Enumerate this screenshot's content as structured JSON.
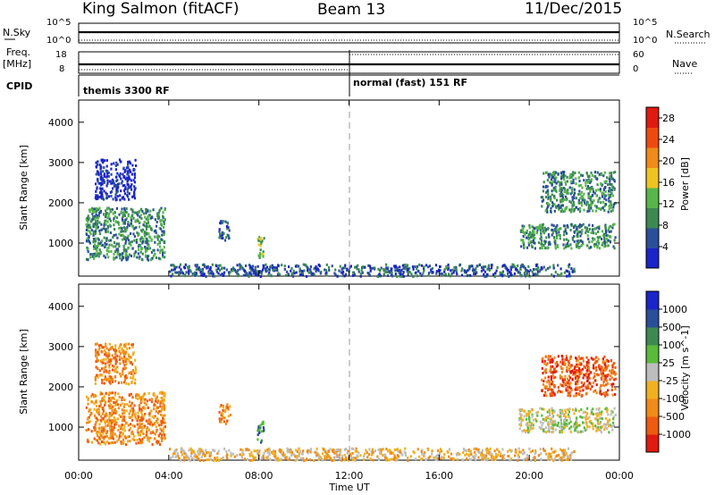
{
  "header": {
    "station": "King Salmon (fitACF)",
    "beam": "Beam 13",
    "date": "11/Dec/2015"
  },
  "param_labels": {
    "nsky": "N.Sky",
    "freq_line1": "Freq.",
    "freq_line2": "[MHz]",
    "cpid": "CPID",
    "nsearch": "N.Search",
    "nave": "Nave",
    "nsky_top": "10^5",
    "nsky_bot": "10^0",
    "freq_top": "18",
    "freq_bot": "8",
    "nave_top": "60",
    "nave_bot": "0"
  },
  "cpid_segments": [
    {
      "label": "themis 3300 RF"
    },
    {
      "label": "normal (fast) 151 RF"
    }
  ],
  "colors": {
    "power": [
      "#1a24c8",
      "#2a4f9a",
      "#3c8a52",
      "#56b64a",
      "#f0c420",
      "#f08a18",
      "#ee4a10",
      "#e01a10"
    ],
    "velocity": [
      "#e01a10",
      "#ee5a10",
      "#f08a18",
      "#f0b020",
      "#bdbdbd",
      "#5aba3a",
      "#3c8a52",
      "#2a4f9a",
      "#1a24c8"
    ]
  },
  "chart_data": [
    {
      "type": "heatmap",
      "title": "Power",
      "ylabel": "Slant Range [km]",
      "xlabel": "Time UT",
      "x_ticks": [
        "00:00",
        "04:00",
        "08:00",
        "12:00",
        "16:00",
        "20:00",
        "00:00"
      ],
      "x_range_hours": [
        0,
        24
      ],
      "y_ticks": [
        1000,
        2000,
        3000,
        4000
      ],
      "ylim": [
        180,
        4550
      ],
      "colorbar_label": "Power [dB]",
      "colorbar_ticks": [
        "4",
        "8",
        "12",
        "16",
        "20",
        "24",
        "28"
      ],
      "clim": [
        0,
        30
      ],
      "echo_regions": [
        {
          "t": [
            0.3,
            3.8
          ],
          "r": [
            600,
            1900
          ],
          "value": 12
        },
        {
          "t": [
            0.7,
            2.5
          ],
          "r": [
            2100,
            3100
          ],
          "value": 5
        },
        {
          "t": [
            6.2,
            6.7
          ],
          "r": [
            1100,
            1600
          ],
          "value": 9
        },
        {
          "t": [
            7.9,
            8.2
          ],
          "r": [
            650,
            1200
          ],
          "value": 14
        },
        {
          "t": [
            4.0,
            22.0
          ],
          "r": [
            200,
            500
          ],
          "value": 8
        },
        {
          "t": [
            19.5,
            23.8
          ],
          "r": [
            900,
            1500
          ],
          "value": 10
        },
        {
          "t": [
            20.5,
            23.8
          ],
          "r": [
            1800,
            2800
          ],
          "value": 10
        }
      ]
    },
    {
      "type": "heatmap",
      "title": "Velocity",
      "ylabel": "Slant Range [km]",
      "xlabel": "Time UT",
      "x_ticks": [
        "00:00",
        "04:00",
        "08:00",
        "12:00",
        "16:00",
        "20:00",
        "00:00"
      ],
      "x_range_hours": [
        0,
        24
      ],
      "y_ticks": [
        1000,
        2000,
        3000,
        4000
      ],
      "ylim": [
        180,
        4550
      ],
      "colorbar_label": "Velocity [m s^-1]",
      "colorbar_ticks": [
        "1000",
        "500",
        "100",
        "25",
        "-25",
        "-100",
        "-500",
        "-1000"
      ],
      "echo_regions": [
        {
          "t": [
            0.3,
            3.8
          ],
          "r": [
            600,
            1900
          ],
          "value": -100
        },
        {
          "t": [
            0.7,
            2.5
          ],
          "r": [
            2100,
            3100
          ],
          "value": -300
        },
        {
          "t": [
            6.2,
            6.7
          ],
          "r": [
            1100,
            1600
          ],
          "value": -400
        },
        {
          "t": [
            7.9,
            8.2
          ],
          "r": [
            650,
            1200
          ],
          "value": 100
        },
        {
          "t": [
            4.0,
            22.0
          ],
          "r": [
            200,
            500
          ],
          "value": -50
        },
        {
          "t": [
            19.5,
            23.8
          ],
          "r": [
            900,
            1500
          ],
          "value": 0
        },
        {
          "t": [
            20.5,
            23.8
          ],
          "r": [
            1800,
            2800
          ],
          "value": -500
        }
      ]
    }
  ]
}
